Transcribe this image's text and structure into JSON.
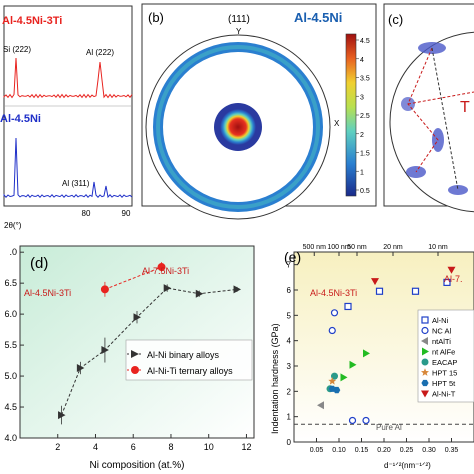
{
  "panel_a": {
    "top_label": "Al-4.5Ni-3Ti",
    "bottom_label": "Al-4.5Ni",
    "peak_si222": "Si (222)",
    "peak_al222": "Al (222)",
    "peak_al311": "Al (311)",
    "xaxis_label": "2θ(°)",
    "xticks": [
      "80",
      "90"
    ],
    "colors": {
      "top": "#e8231f",
      "bottom": "#1f2fc8"
    }
  },
  "panel_b": {
    "letter": "(b)",
    "miller": "(111)",
    "title": "Al-4.5Ni",
    "axis_y": "Y",
    "axis_x": "X",
    "colorbar_ticks": [
      "4.5",
      "4",
      "3.5",
      "3",
      "2.5",
      "2",
      "1.5",
      "1",
      "0.5"
    ]
  },
  "panel_c": {
    "letter": "(c)",
    "partial_label": "T"
  },
  "panel_d": {
    "letter": "(d)",
    "annot_al75": "Al-7.5Ni-3Ti",
    "annot_al45": "Al-4.5Ni-3Ti",
    "legend": [
      {
        "label": "Al-Ni binary alloys",
        "color": "#333333",
        "marker": "triangle"
      },
      {
        "label": "Al-Ni-Ti ternary alloys",
        "color": "#e8231f",
        "marker": "circle"
      }
    ],
    "xlabel": "Ni composition (at.%)",
    "xticks": [
      "2",
      "4",
      "6",
      "8",
      "10",
      "12"
    ],
    "yticks": [
      ".0",
      "6.5",
      "6.0",
      "5.5",
      "5.0",
      "4.5",
      "4.0"
    ]
  },
  "panel_e": {
    "letter": "(e)",
    "ylabel": "Indentation hardness (GPa)",
    "xlabel": "d⁻¹ᐟ²(nm⁻¹ᐟ²)",
    "xticks": [
      "0.05",
      "0.10",
      "0.15",
      "0.20",
      "0.25",
      "0.30",
      "0.35"
    ],
    "yticks": [
      "7",
      "6",
      "5",
      "4",
      "3",
      "2",
      "1",
      "0"
    ],
    "top_ticks": [
      "500 nm",
      "100 nm",
      "50 nm",
      "20 nm",
      "10 nm"
    ],
    "annot_al45": "Al-4.5Ni-3Ti",
    "annot_al75": "Al-7.",
    "pure_al": "Pure Al",
    "legend": [
      {
        "label": "Al-Ni",
        "color": "#1f3fc8",
        "marker": "square"
      },
      {
        "label": "NC Al",
        "color": "#1f3fc8",
        "marker": "circle-open"
      },
      {
        "label": "ntAlTi",
        "color": "#888888",
        "marker": "tri-left"
      },
      {
        "label": "nt AlFe",
        "color": "#22bb22",
        "marker": "tri-right"
      },
      {
        "label": "EACAP",
        "color": "#2a9a8a",
        "marker": "circle"
      },
      {
        "label": "HPT 15",
        "color": "#d8883a",
        "marker": "star"
      },
      {
        "label": "HPT 5t",
        "color": "#1a6fb0",
        "marker": "hexagon"
      },
      {
        "label": "Al-Ni-T",
        "color": "#c81a1a",
        "marker": "tri-down"
      }
    ]
  },
  "chart_data": [
    {
      "type": "line",
      "panel": "d",
      "xlabel": "Ni composition (at.%)",
      "ylabel": "",
      "xlim": [
        0,
        12.4
      ],
      "ylim": [
        4.0,
        7.1
      ],
      "series": [
        {
          "name": "Al-Ni binary alloys",
          "x": [
            2.2,
            3.2,
            4.5,
            6.2,
            7.8,
            9.5,
            11.5
          ],
          "y": [
            4.37,
            5.13,
            5.42,
            5.95,
            6.42,
            6.33,
            6.4
          ],
          "err": [
            0.15,
            0.1,
            0.2,
            0.1,
            0.06,
            0.05,
            0.04
          ]
        },
        {
          "name": "Al-Ni-Ti ternary alloys",
          "x": [
            4.5,
            7.5
          ],
          "y": [
            6.4,
            6.76
          ],
          "err": [
            0.12,
            0.08
          ]
        }
      ]
    },
    {
      "type": "scatter",
      "panel": "e",
      "xlabel": "d⁻¹ᐟ²(nm⁻¹ᐟ²)",
      "ylabel": "Indentation hardness (GPa)",
      "xlim": [
        0.0,
        0.4
      ],
      "ylim": [
        0,
        7.5
      ],
      "reference_line": {
        "label": "Pure Al",
        "y": 0.7
      },
      "series": [
        {
          "name": "Al-Ni",
          "x": [
            0.12,
            0.19,
            0.27,
            0.34
          ],
          "y": [
            5.35,
            5.95,
            5.95,
            6.3
          ]
        },
        {
          "name": "NC Al",
          "x": [
            0.085,
            0.09,
            0.13,
            0.16
          ],
          "y": [
            4.4,
            5.1,
            0.85,
            0.85
          ]
        },
        {
          "name": "ntAlTi",
          "x": [
            0.06
          ],
          "y": [
            1.45
          ]
        },
        {
          "name": "nt AlFe",
          "x": [
            0.11,
            0.13,
            0.16
          ],
          "y": [
            2.55,
            3.05,
            3.5
          ]
        },
        {
          "name": "EACAP",
          "x": [
            0.08,
            0.09
          ],
          "y": [
            2.1,
            2.6
          ]
        },
        {
          "name": "HPT 15",
          "x": [
            0.085
          ],
          "y": [
            2.4
          ]
        },
        {
          "name": "HPT 5t",
          "x": [
            0.085,
            0.095
          ],
          "y": [
            2.1,
            2.05
          ]
        },
        {
          "name": "Al-Ni-T",
          "x": [
            0.18,
            0.35
          ],
          "y": [
            6.35,
            6.8
          ]
        }
      ]
    }
  ]
}
